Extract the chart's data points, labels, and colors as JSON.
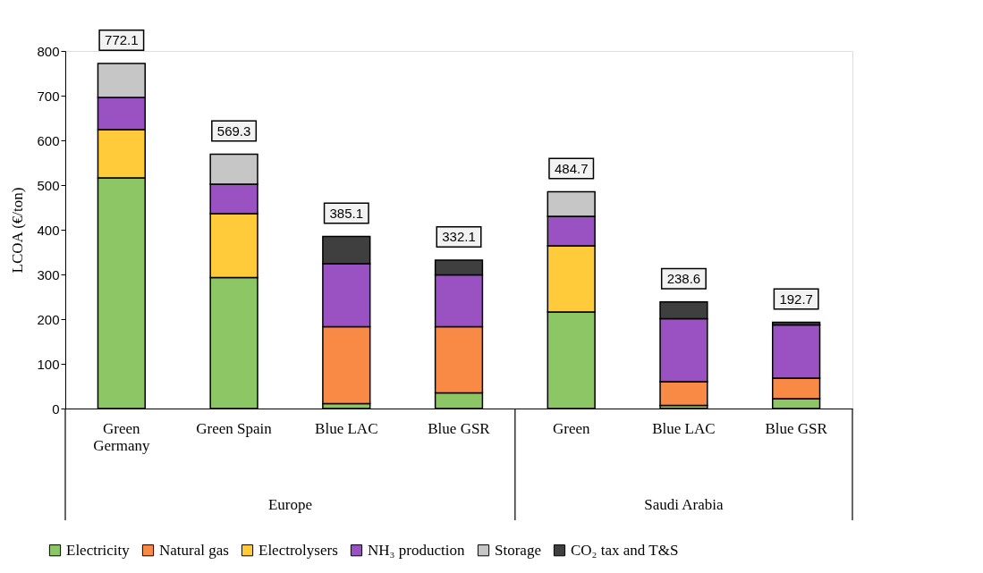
{
  "chart_data": {
    "type": "bar",
    "stacked": true,
    "ylabel": "LCOA (€/ton)",
    "categories": [
      "Green Germany",
      "Green Spain",
      "Blue LAC",
      "Blue GSR",
      "Green",
      "Blue LAC",
      "Blue GSR"
    ],
    "series": [
      {
        "name": "Electricity",
        "color": "#8cc665",
        "values": [
          516,
          293,
          11,
          35,
          216,
          7,
          22
        ]
      },
      {
        "name": "Natural gas",
        "color": "#f98a45",
        "values": [
          null,
          null,
          172,
          148,
          null,
          53,
          46
        ]
      },
      {
        "name": "Electrolysers",
        "color": "#ffcb3a",
        "values": [
          108,
          143,
          null,
          null,
          148,
          null,
          null
        ]
      },
      {
        "name": "NH₃ production",
        "color": "#9a52c2",
        "values": [
          72,
          66,
          141,
          116,
          66,
          141,
          119
        ]
      },
      {
        "name": "Storage",
        "color": "#c6c6c6",
        "values": [
          76,
          67,
          null,
          null,
          55,
          null,
          null
        ]
      },
      {
        "name": "CO₂ tax and T&S",
        "color": "#3f3f3f",
        "values": [
          null,
          null,
          61,
          33,
          null,
          37.6,
          6
        ]
      }
    ],
    "totals": [
      "772.1",
      "569.3",
      "385.1",
      "332.1",
      "484.7",
      "238.6",
      "192.7"
    ],
    "annotations": [
      "Europe",
      "Saudi Arabia"
    ],
    "ylim": [
      0,
      800
    ],
    "yticks": [
      0,
      100,
      200,
      300,
      400,
      500,
      600,
      700,
      800
    ],
    "grid": false,
    "legend": "bottom"
  }
}
